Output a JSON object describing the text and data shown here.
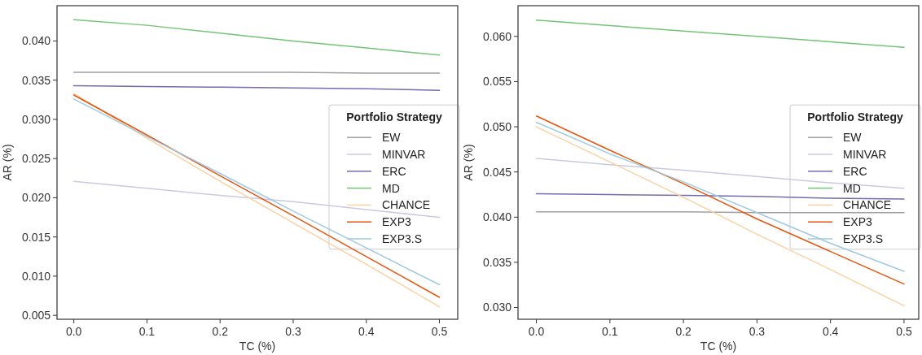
{
  "chart_data": [
    {
      "type": "line",
      "xlabel": "TC (%)",
      "ylabel": "AR (%)",
      "legend_title": "Portfolio Strategy",
      "legend": "right",
      "grid": false,
      "x": [
        0,
        0.1,
        0.2,
        0.3,
        0.4,
        0.5
      ],
      "xlim": [
        -0.023,
        0.525
      ],
      "xticks": [
        {
          "value": 0,
          "label": "0.0"
        },
        0.1,
        0.2,
        0.3,
        0.4,
        0.5
      ],
      "ylim": [
        0.0045,
        0.0445
      ],
      "yticks": [
        {
          "value": 0.005,
          "label": "0.005"
        },
        {
          "value": 0.01,
          "label": "0.010"
        },
        0.015,
        {
          "value": 0.02,
          "label": "0.020"
        },
        0.025,
        {
          "value": 0.03,
          "label": "0.030"
        },
        0.035,
        {
          "value": 0.04,
          "label": "0.040"
        }
      ],
      "series": [
        {
          "name": "EW",
          "color": "#a0a0a0",
          "values": [
            0.036,
            0.036,
            0.036,
            0.036,
            0.0359,
            0.0359
          ]
        },
        {
          "name": "MINVAR",
          "color": "#cbc9e2",
          "values": [
            0.0221,
            0.0212,
            0.0203,
            0.0195,
            0.0185,
            0.0175
          ]
        },
        {
          "name": "ERC",
          "color": "#756bb1",
          "values": [
            0.0343,
            0.0342,
            0.0341,
            0.034,
            0.0339,
            0.0337
          ]
        },
        {
          "name": "MD",
          "color": "#74c476",
          "values": [
            0.0427,
            0.042,
            0.041,
            0.04,
            0.0391,
            0.0382
          ]
        },
        {
          "name": "CHANCE",
          "color": "#fdd0a2",
          "values": [
            0.0333,
            0.0276,
            0.0221,
            0.0168,
            0.0115,
            0.0061
          ]
        },
        {
          "name": "EXP3",
          "color": "#e6550d",
          "values": [
            0.0331,
            0.028,
            0.0228,
            0.0177,
            0.0125,
            0.0073
          ]
        },
        {
          "name": "EXP3.S",
          "color": "#9ecae1",
          "values": [
            0.0326,
            0.0278,
            0.0231,
            0.0183,
            0.0136,
            0.0089
          ]
        }
      ]
    },
    {
      "type": "line",
      "xlabel": "TC (%)",
      "ylabel": "AR (%)",
      "legend_title": "Portfolio Strategy",
      "legend": "right",
      "grid": false,
      "x": [
        0,
        0.1,
        0.2,
        0.3,
        0.4,
        0.5
      ],
      "xlim": [
        -0.025,
        0.52
      ],
      "xticks": [
        {
          "value": 0,
          "label": "0.0"
        },
        0.1,
        0.2,
        0.3,
        0.4,
        0.5
      ],
      "ylim": [
        0.0287,
        0.0634
      ],
      "yticks": [
        {
          "value": 0.03,
          "label": "0.030"
        },
        0.035,
        {
          "value": 0.04,
          "label": "0.040"
        },
        0.045,
        {
          "value": 0.05,
          "label": "0.050"
        },
        0.055,
        {
          "value": 0.06,
          "label": "0.060"
        }
      ],
      "series": [
        {
          "name": "EW",
          "color": "#a0a0a0",
          "values": [
            0.0406,
            0.0406,
            0.0406,
            0.0405,
            0.0405,
            0.0405
          ]
        },
        {
          "name": "MINVAR",
          "color": "#cbc9e2",
          "values": [
            0.0465,
            0.0458,
            0.0452,
            0.0445,
            0.0438,
            0.0432
          ]
        },
        {
          "name": "ERC",
          "color": "#756bb1",
          "values": [
            0.0426,
            0.0425,
            0.0424,
            0.0423,
            0.0421,
            0.042
          ]
        },
        {
          "name": "MD",
          "color": "#74c476",
          "values": [
            0.0618,
            0.0612,
            0.0606,
            0.06,
            0.0594,
            0.0588
          ]
        },
        {
          "name": "CHANCE",
          "color": "#fdd0a2",
          "values": [
            0.05,
            0.0461,
            0.0422,
            0.0381,
            0.0342,
            0.0302
          ]
        },
        {
          "name": "EXP3",
          "color": "#e6550d",
          "values": [
            0.0512,
            0.0474,
            0.0437,
            0.0398,
            0.0362,
            0.0326
          ]
        },
        {
          "name": "EXP3.S",
          "color": "#9ecae1",
          "values": [
            0.0505,
            0.047,
            0.0439,
            0.0405,
            0.0371,
            0.034
          ]
        }
      ]
    }
  ]
}
